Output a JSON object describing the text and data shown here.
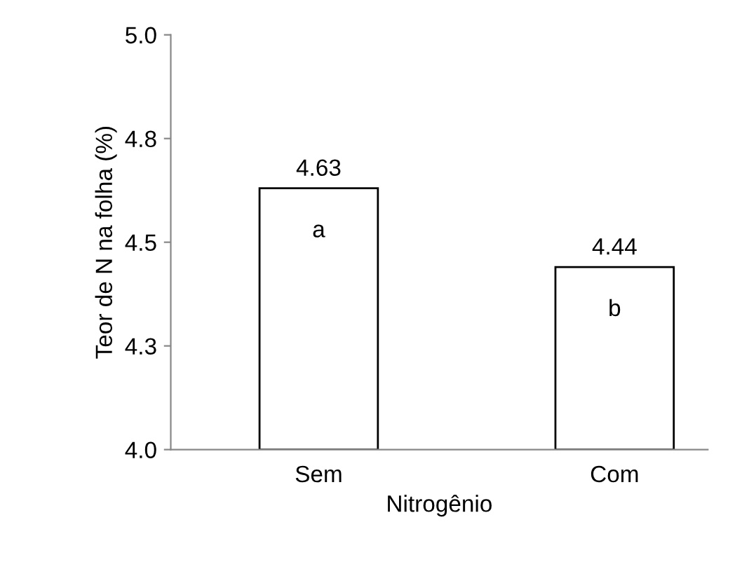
{
  "chart_data": {
    "type": "bar",
    "xlabel": "Nitrogênio",
    "ylabel": "Teor de N na folha (%)",
    "categories": [
      "Sem",
      "Com"
    ],
    "values": [
      4.63,
      4.44
    ],
    "colors": [
      "#ffffff",
      "#ffffff"
    ],
    "data_labels": true,
    "ylim": [
      4.0,
      5.0
    ],
    "yticks": [
      {
        "value": 4.0,
        "label": "4.0"
      },
      {
        "value": 4.25,
        "label": "4.3"
      },
      {
        "value": 4.5,
        "label": "4.5"
      },
      {
        "value": 4.75,
        "label": "4.8"
      },
      {
        "value": 5.0,
        "label": "5.0"
      }
    ],
    "annotations": [
      "a",
      "b"
    ],
    "grid": false
  }
}
